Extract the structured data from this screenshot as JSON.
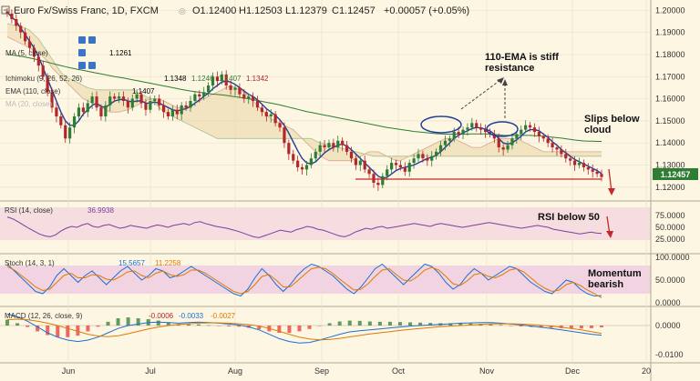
{
  "header": {
    "title": "Euro Fx/Swiss Franc, 1D, FXCM",
    "open": "O1.12400",
    "high": "H1.12503",
    "low": "L1.12379",
    "close": "C1.12457",
    "change": "+0.00057 (+0.05%)"
  },
  "overlays": [
    {
      "label": "MA (5, close)",
      "value": "1.1261",
      "color": "#1f3f99"
    },
    {
      "label": "Ichimoku (9, 26, 52, 26)",
      "value": "1.1348",
      "values2": [
        "1.1246",
        "1.1407",
        "1.1342"
      ],
      "color": "#b3262a"
    },
    {
      "label": "EMA (110, close)",
      "value": "1.1407",
      "color": "#2e7d32"
    },
    {
      "label": "MA (20, close)",
      "value": "",
      "color": "#999999"
    }
  ],
  "price_badge": "1.12457",
  "annotations": {
    "ema": "110-EMA is stiff resistance",
    "cloud": "Slips below cloud",
    "rsi": "RSI below 50",
    "momentum": "Momentum bearish"
  },
  "panels": {
    "rsi": {
      "label": "RSI (14, close)",
      "value": "36.9938"
    },
    "stoch": {
      "label": "Stoch (14, 3, 1)",
      "k": "15.5657",
      "d": "11.2258"
    },
    "macd": {
      "label": "MACD (12, 26, close, 9)",
      "v1": "-0.0006",
      "v2": "-0.0033",
      "v3": "-0.0027"
    }
  },
  "colors": {
    "bull": "#2e7d32",
    "bear": "#b3262a",
    "ma5": "#1f3f99",
    "ema110": "#2e7d32"
  },
  "chart_data": {
    "type": "candlestick",
    "price_axis_ticks": [
      1.2,
      1.19,
      1.18,
      1.17,
      1.16,
      1.15,
      1.14,
      1.13,
      1.12
    ],
    "price_range": [
      1.115,
      1.203
    ],
    "rsi_ticks": [
      "75.0000",
      "50.0000",
      "25.0000"
    ],
    "stoch_ticks": [
      "100.0000",
      "50.0000",
      "0.0000"
    ],
    "macd_ticks": [
      "0.0000",
      "-0.0100"
    ],
    "x_labels": [
      "Jun",
      "Jul",
      "Aug",
      "Sep",
      "Oct",
      "Nov",
      "Dec",
      "20"
    ],
    "support_level": 1.124,
    "series": {
      "close": [
        1.1985,
        1.196,
        1.193,
        1.19,
        1.186,
        1.183,
        1.179,
        1.175,
        1.17,
        1.163,
        1.156,
        1.152,
        1.148,
        1.142,
        1.147,
        1.152,
        1.156,
        1.154,
        1.158,
        1.161,
        1.156,
        1.152,
        1.157,
        1.161,
        1.16,
        1.161,
        1.159,
        1.156,
        1.16,
        1.162,
        1.158,
        1.155,
        1.159,
        1.16,
        1.157,
        1.154,
        1.152,
        1.155,
        1.153,
        1.157,
        1.156,
        1.159,
        1.162,
        1.161,
        1.163,
        1.166,
        1.17,
        1.168,
        1.171,
        1.166,
        1.164,
        1.165,
        1.162,
        1.16,
        1.161,
        1.159,
        1.156,
        1.154,
        1.152,
        1.153,
        1.149,
        1.147,
        1.14,
        1.135,
        1.132,
        1.129,
        1.128,
        1.13,
        1.133,
        1.136,
        1.139,
        1.138,
        1.14,
        1.138,
        1.141,
        1.139,
        1.136,
        1.133,
        1.13,
        1.132,
        1.128,
        1.126,
        1.122,
        1.121,
        1.125,
        1.128,
        1.131,
        1.13,
        1.129,
        1.127,
        1.131,
        1.133,
        1.135,
        1.133,
        1.132,
        1.134,
        1.136,
        1.139,
        1.141,
        1.142,
        1.145,
        1.144,
        1.146,
        1.147,
        1.149,
        1.147,
        1.146,
        1.145,
        1.144,
        1.142,
        1.138,
        1.137,
        1.139,
        1.142,
        1.144,
        1.146,
        1.148,
        1.147,
        1.145,
        1.143,
        1.142,
        1.14,
        1.138,
        1.137,
        1.135,
        1.133,
        1.132,
        1.13,
        1.131,
        1.129,
        1.128,
        1.127,
        1.126,
        1.1246
      ],
      "ma5": [
        1.199,
        1.197,
        1.195,
        1.192,
        1.189,
        1.186,
        1.183,
        1.179,
        1.174,
        1.169,
        1.164,
        1.159,
        1.154,
        1.15,
        1.148,
        1.148,
        1.15,
        1.153,
        1.155,
        1.157,
        1.158,
        1.1565,
        1.156,
        1.1575,
        1.159,
        1.1595,
        1.1598,
        1.159,
        1.1585,
        1.159,
        1.159,
        1.158,
        1.158,
        1.1585,
        1.158,
        1.157,
        1.156,
        1.155,
        1.1545,
        1.155,
        1.1555,
        1.1565,
        1.158,
        1.1595,
        1.161,
        1.1625,
        1.1645,
        1.166,
        1.1675,
        1.168,
        1.1675,
        1.1665,
        1.165,
        1.1635,
        1.162,
        1.161,
        1.1595,
        1.1575,
        1.1555,
        1.154,
        1.1525,
        1.1505,
        1.148,
        1.1445,
        1.1405,
        1.1365,
        1.133,
        1.131,
        1.1305,
        1.1315,
        1.1335,
        1.1355,
        1.137,
        1.138,
        1.139,
        1.1395,
        1.1385,
        1.137,
        1.135,
        1.133,
        1.131,
        1.129,
        1.127,
        1.125,
        1.124,
        1.1245,
        1.126,
        1.1275,
        1.1285,
        1.129,
        1.1295,
        1.13,
        1.131,
        1.132,
        1.133,
        1.1335,
        1.1345,
        1.136,
        1.138,
        1.14,
        1.142,
        1.1435,
        1.1445,
        1.1455,
        1.1465,
        1.147,
        1.1468,
        1.1462,
        1.1455,
        1.144,
        1.142,
        1.14,
        1.1395,
        1.14,
        1.1415,
        1.143,
        1.145,
        1.146,
        1.146,
        1.1455,
        1.144,
        1.1425,
        1.1405,
        1.139,
        1.137,
        1.1355,
        1.134,
        1.1325,
        1.1315,
        1.1305,
        1.1295,
        1.1285,
        1.1275,
        1.1261
      ],
      "ema110": [
        1.18,
        1.1798,
        1.1795,
        1.1792,
        1.1788,
        1.1784,
        1.178,
        1.1775,
        1.177,
        1.1765,
        1.176,
        1.1755,
        1.175,
        1.1745,
        1.174,
        1.1736,
        1.1732,
        1.1728,
        1.1724,
        1.172,
        1.1716,
        1.1712,
        1.1708,
        1.1704,
        1.17,
        1.1697,
        1.1694,
        1.169,
        1.1686,
        1.1682,
        1.1678,
        1.1674,
        1.167,
        1.1666,
        1.1662,
        1.1658,
        1.1654,
        1.165,
        1.1646,
        1.1642,
        1.1638,
        1.1635,
        1.1632,
        1.1629,
        1.1626,
        1.1623,
        1.1621,
        1.1619,
        1.1617,
        1.1615,
        1.1612,
        1.1609,
        1.1606,
        1.1603,
        1.16,
        1.1596,
        1.1592,
        1.1588,
        1.1584,
        1.158,
        1.1576,
        1.1572,
        1.1567,
        1.1562,
        1.1557,
        1.1552,
        1.1547,
        1.1542,
        1.1538,
        1.1534,
        1.153,
        1.1526,
        1.1522,
        1.1518,
        1.1514,
        1.151,
        1.1506,
        1.1502,
        1.1498,
        1.1494,
        1.149,
        1.1486,
        1.1482,
        1.1478,
        1.1474,
        1.147,
        1.1467,
        1.1464,
        1.1461,
        1.1458,
        1.1455,
        1.1452,
        1.145,
        1.1448,
        1.1446,
        1.1444,
        1.1442,
        1.1441,
        1.144,
        1.144,
        1.144,
        1.144,
        1.144,
        1.144,
        1.1441,
        1.1441,
        1.1441,
        1.1441,
        1.144,
        1.1439,
        1.1437,
        1.1435,
        1.1434,
        1.1434,
        1.1434,
        1.1434,
        1.1434,
        1.1434,
        1.1433,
        1.1432,
        1.143,
        1.1428,
        1.1426,
        1.1424,
        1.1422,
        1.1419,
        1.1416,
        1.1413,
        1.1411,
        1.1409,
        1.1408,
        1.1408,
        1.1407,
        1.1407
      ],
      "cloud_a": [
        1.188,
        1.187,
        1.186,
        1.185,
        1.184,
        1.183,
        1.182,
        1.181,
        1.179,
        1.177,
        1.174,
        1.172,
        1.17,
        1.168,
        1.166,
        1.164,
        1.162,
        1.16,
        1.159,
        1.158,
        1.157,
        1.156,
        1.155,
        1.154,
        1.154,
        1.154,
        1.1545,
        1.155,
        1.156,
        1.157,
        1.158,
        1.159,
        1.16,
        1.16,
        1.16,
        1.159,
        1.158,
        1.157,
        1.156,
        1.156,
        1.156,
        1.157,
        1.158,
        1.159,
        1.16,
        1.161,
        1.162,
        1.163,
        1.164,
        1.165,
        1.166,
        1.165,
        1.164,
        1.163,
        1.161,
        1.159,
        1.157,
        1.155,
        1.153,
        1.151,
        1.15,
        1.149,
        1.148,
        1.147,
        1.146,
        1.144,
        1.142,
        1.14,
        1.138,
        1.136,
        1.134,
        1.133,
        1.132,
        1.132,
        1.132,
        1.132,
        1.132,
        1.132,
        1.133,
        1.134,
        1.135,
        1.136,
        1.136,
        1.136,
        1.135,
        1.134,
        1.133,
        1.132,
        1.132,
        1.133,
        1.134,
        1.135,
        1.136,
        1.137,
        1.138,
        1.139,
        1.14,
        1.141,
        1.142,
        1.142,
        1.142,
        1.141,
        1.14,
        1.139,
        1.138,
        1.138,
        1.138,
        1.139,
        1.14,
        1.141,
        1.142,
        1.142,
        1.142,
        1.142,
        1.142,
        1.141,
        1.14,
        1.139,
        1.138,
        1.137,
        1.136,
        1.136,
        1.136,
        1.136,
        1.136,
        1.136,
        1.136,
        1.136,
        1.136,
        1.136,
        1.136,
        1.136,
        1.136,
        1.136
      ],
      "cloud_b": [
        1.194,
        1.1935,
        1.193,
        1.1925,
        1.192,
        1.191,
        1.189,
        1.187,
        1.184,
        1.181,
        1.178,
        1.175,
        1.172,
        1.17,
        1.169,
        1.168,
        1.167,
        1.166,
        1.165,
        1.1645,
        1.164,
        1.164,
        1.164,
        1.164,
        1.164,
        1.164,
        1.164,
        1.164,
        1.164,
        1.163,
        1.162,
        1.161,
        1.16,
        1.158,
        1.156,
        1.154,
        1.153,
        1.152,
        1.151,
        1.15,
        1.149,
        1.148,
        1.147,
        1.146,
        1.145,
        1.144,
        1.143,
        1.142,
        1.142,
        1.142,
        1.142,
        1.142,
        1.142,
        1.142,
        1.142,
        1.142,
        1.142,
        1.142,
        1.142,
        1.142,
        1.142,
        1.142,
        1.142,
        1.142,
        1.142,
        1.142,
        1.142,
        1.142,
        1.142,
        1.141,
        1.14,
        1.1395,
        1.139,
        1.1385,
        1.138,
        1.1375,
        1.137,
        1.1365,
        1.136,
        1.1355,
        1.135,
        1.1345,
        1.134,
        1.134,
        1.134,
        1.134,
        1.134,
        1.134,
        1.134,
        1.134,
        1.134,
        1.134,
        1.134,
        1.134,
        1.134,
        1.134,
        1.134,
        1.134,
        1.134,
        1.134,
        1.134,
        1.134,
        1.134,
        1.134,
        1.134,
        1.134,
        1.134,
        1.134,
        1.134,
        1.134,
        1.134,
        1.134,
        1.134,
        1.134,
        1.134,
        1.134,
        1.134,
        1.134,
        1.134,
        1.134,
        1.134,
        1.134,
        1.134,
        1.134,
        1.134,
        1.134,
        1.134,
        1.134,
        1.134,
        1.134,
        1.134,
        1.134,
        1.134,
        1.134
      ]
    },
    "rsi": [
      72,
      68,
      62,
      55,
      48,
      42,
      36,
      32,
      30,
      34,
      42,
      48,
      52,
      50,
      55,
      58,
      52,
      50,
      54,
      56,
      52,
      48,
      50,
      54,
      52,
      50,
      48,
      52,
      55,
      53,
      50,
      54,
      56,
      58,
      55,
      60,
      62,
      58,
      55,
      52,
      50,
      48,
      45,
      42,
      38,
      34,
      30,
      28,
      32,
      36,
      40,
      44,
      42,
      40,
      45,
      48,
      52,
      50,
      46,
      44,
      40,
      36,
      32,
      30,
      34,
      40,
      44,
      48,
      46,
      50,
      52,
      48,
      50,
      52,
      54,
      56,
      58,
      56,
      54,
      52,
      56,
      58,
      56,
      54,
      52,
      50,
      52,
      54,
      56,
      58,
      60,
      58,
      56,
      54,
      52,
      50,
      48,
      50,
      52,
      54,
      52,
      50,
      46,
      44,
      42,
      40,
      38,
      36,
      38,
      40,
      38,
      37
    ],
    "stoch": {
      "k": [
        85,
        70,
        55,
        40,
        25,
        20,
        35,
        60,
        75,
        60,
        45,
        60,
        70,
        55,
        40,
        55,
        70,
        80,
        65,
        50,
        60,
        75,
        70,
        55,
        60,
        70,
        80,
        70,
        60,
        50,
        40,
        30,
        20,
        15,
        30,
        55,
        75,
        60,
        40,
        25,
        40,
        60,
        75,
        85,
        80,
        70,
        60,
        45,
        30,
        20,
        35,
        55,
        75,
        85,
        70,
        55,
        40,
        55,
        70,
        85,
        80,
        65,
        45,
        30,
        40,
        60,
        75,
        65,
        50,
        60,
        70,
        80,
        75,
        60,
        45,
        35,
        25,
        20,
        35,
        50,
        45,
        30,
        20,
        15,
        16
      ],
      "d": [
        80,
        72,
        60,
        48,
        35,
        27,
        30,
        45,
        60,
        65,
        55,
        55,
        62,
        60,
        52,
        50,
        58,
        68,
        70,
        60,
        55,
        65,
        70,
        62,
        58,
        62,
        72,
        72,
        65,
        55,
        45,
        35,
        25,
        20,
        25,
        40,
        58,
        62,
        50,
        35,
        35,
        48,
        62,
        75,
        78,
        75,
        65,
        52,
        40,
        28,
        30,
        42,
        58,
        72,
        75,
        62,
        50,
        48,
        58,
        72,
        78,
        72,
        58,
        42,
        38,
        48,
        62,
        65,
        58,
        55,
        62,
        72,
        75,
        68,
        55,
        42,
        32,
        25,
        28,
        40,
        45,
        38,
        28,
        20,
        11
      ]
    },
    "macd": {
      "macd": [
        0.004,
        0.003,
        0.0015,
        -0.0005,
        -0.0025,
        -0.004,
        -0.005,
        -0.0055,
        -0.005,
        -0.004,
        -0.0025,
        -0.001,
        0.0,
        0.0005,
        0.001,
        0.0012,
        0.001,
        0.0008,
        0.001,
        0.0012,
        0.001,
        0.0008,
        0.0005,
        0.0002,
        -0.0005,
        -0.0015,
        -0.003,
        -0.0045,
        -0.0055,
        -0.006,
        -0.0058,
        -0.005,
        -0.004,
        -0.003,
        -0.0022,
        -0.0018,
        -0.0015,
        -0.0012,
        -0.0008,
        -0.0005,
        -0.0002,
        0.0,
        0.0002,
        0.0004,
        0.0006,
        0.0008,
        0.0009,
        0.001,
        0.001,
        0.0008,
        0.0005,
        0.0002,
        -0.0002,
        -0.0006,
        -0.001,
        -0.0015,
        -0.002,
        -0.0025,
        -0.003,
        -0.0033
      ],
      "signal": [
        0.002,
        0.0022,
        0.002,
        0.0015,
        0.0008,
        0.0,
        -0.001,
        -0.002,
        -0.003,
        -0.0036,
        -0.0038,
        -0.0035,
        -0.0028,
        -0.002,
        -0.0012,
        -0.0005,
        0.0,
        0.0004,
        0.0006,
        0.0008,
        0.0009,
        0.0009,
        0.0008,
        0.0006,
        0.0003,
        -0.0002,
        -0.001,
        -0.002,
        -0.003,
        -0.004,
        -0.0046,
        -0.0049,
        -0.0048,
        -0.0044,
        -0.0039,
        -0.0034,
        -0.0029,
        -0.0025,
        -0.0021,
        -0.0017,
        -0.0013,
        -0.001,
        -0.0007,
        -0.0004,
        -0.0002,
        0.0,
        0.0002,
        0.0004,
        0.0006,
        0.0006,
        0.0006,
        0.0005,
        0.0003,
        0.0001,
        -0.0002,
        -0.0006,
        -0.001,
        -0.0015,
        -0.0021,
        -0.0027
      ]
    }
  }
}
